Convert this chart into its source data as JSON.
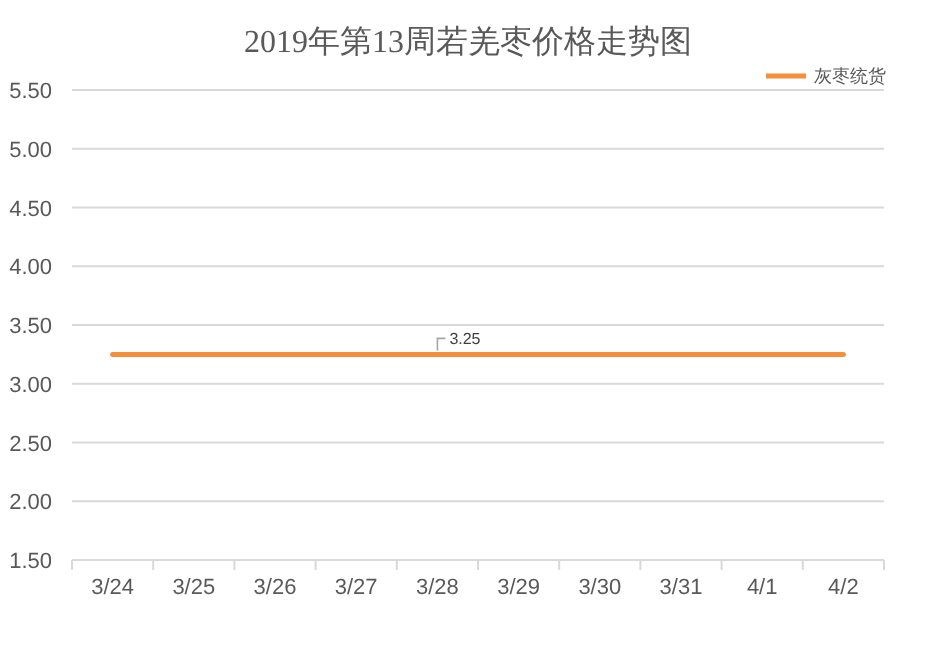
{
  "chart_data": {
    "type": "line",
    "title": "2019年第13周若羌枣价格走势图",
    "categories": [
      "3/24",
      "3/25",
      "3/26",
      "3/27",
      "3/28",
      "3/29",
      "3/30",
      "3/31",
      "4/1",
      "4/2"
    ],
    "series": [
      {
        "name": "灰枣统货",
        "color": "#f58f3c",
        "values": [
          3.25,
          3.25,
          3.25,
          3.25,
          3.25,
          3.25,
          3.25,
          3.25,
          3.25,
          3.25
        ],
        "value_labels": [
          null,
          null,
          null,
          null,
          "3.25",
          null,
          null,
          null,
          null,
          null
        ]
      }
    ],
    "ylim": [
      1.5,
      5.5
    ],
    "yticks": [
      {
        "value": 1.5,
        "label": "1.50"
      },
      {
        "value": 2,
        "label": "2.00"
      },
      {
        "value": 2.5,
        "label": "2.50"
      },
      {
        "value": 3,
        "label": "3.00"
      },
      {
        "value": 3.5,
        "label": "3.50"
      },
      {
        "value": 4,
        "label": "4.00"
      },
      {
        "value": 4.5,
        "label": "4.50"
      },
      {
        "value": 5,
        "label": "5.00"
      },
      {
        "value": 5.5,
        "label": "5.50"
      }
    ],
    "grid": "y",
    "legend": "top right",
    "marker": "none",
    "line_style": "solid"
  }
}
